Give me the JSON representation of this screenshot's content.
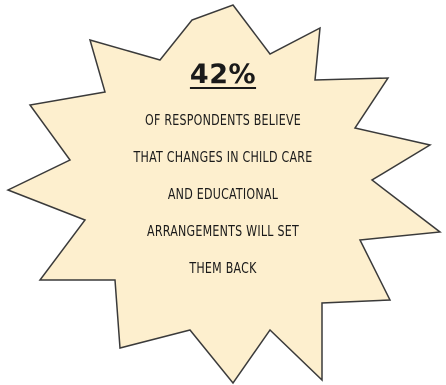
{
  "badge": {
    "stat": "42%",
    "lines": [
      "OF RESPONDENTS BELIEVE",
      "THAT CHANGES IN CHILD CARE",
      "AND EDUCATIONAL",
      "ARRANGEMENTS WILL SET",
      "THEM BACK"
    ],
    "fill_color": "#fdefce",
    "stroke_color": "#3a3a3a",
    "text_color": "#1a1a1a"
  }
}
